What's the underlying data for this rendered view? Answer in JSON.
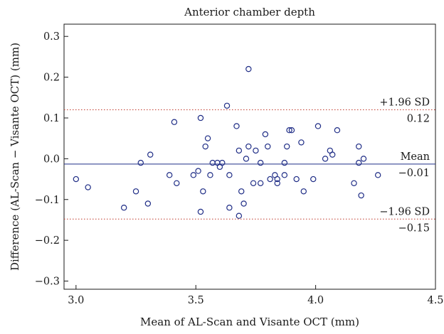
{
  "chart_data": {
    "type": "scatter",
    "title": "Anterior chamber depth",
    "xlabel": "Mean of AL-Scan and Visante OCT (mm)",
    "ylabel": "Difference (AL-Scan − Visante OCT) (mm)",
    "xlim": [
      2.95,
      4.5
    ],
    "ylim": [
      -0.32,
      0.33
    ],
    "xticks": [
      3.0,
      3.5,
      4.0,
      4.5
    ],
    "xtick_labels": [
      "3.0",
      "3.5",
      "4.0",
      "4.5"
    ],
    "yticks": [
      -0.3,
      -0.2,
      -0.1,
      0.0,
      0.1,
      0.2,
      0.3
    ],
    "ytick_labels": [
      "−0.3",
      "−0.2",
      "−0.1",
      "0.0",
      "0.1",
      "0.2",
      "0.3"
    ],
    "grid": false,
    "points": [
      [
        3.0,
        -0.05
      ],
      [
        3.05,
        -0.07
      ],
      [
        3.2,
        -0.12
      ],
      [
        3.25,
        -0.08
      ],
      [
        3.27,
        -0.01
      ],
      [
        3.3,
        -0.11
      ],
      [
        3.31,
        0.01
      ],
      [
        3.39,
        -0.04
      ],
      [
        3.41,
        0.09
      ],
      [
        3.42,
        -0.06
      ],
      [
        3.49,
        -0.04
      ],
      [
        3.51,
        -0.03
      ],
      [
        3.52,
        -0.13
      ],
      [
        3.52,
        0.1
      ],
      [
        3.53,
        -0.08
      ],
      [
        3.54,
        0.03
      ],
      [
        3.55,
        0.05
      ],
      [
        3.56,
        -0.04
      ],
      [
        3.57,
        -0.01
      ],
      [
        3.59,
        -0.01
      ],
      [
        3.6,
        -0.02
      ],
      [
        3.61,
        -0.01
      ],
      [
        3.63,
        0.13
      ],
      [
        3.64,
        -0.12
      ],
      [
        3.64,
        -0.04
      ],
      [
        3.67,
        0.08
      ],
      [
        3.68,
        -0.14
      ],
      [
        3.68,
        0.02
      ],
      [
        3.69,
        -0.08
      ],
      [
        3.7,
        -0.11
      ],
      [
        3.71,
        0.0
      ],
      [
        3.72,
        0.03
      ],
      [
        3.72,
        0.22
      ],
      [
        3.74,
        -0.06
      ],
      [
        3.75,
        0.02
      ],
      [
        3.77,
        -0.06
      ],
      [
        3.77,
        -0.01
      ],
      [
        3.79,
        0.06
      ],
      [
        3.8,
        0.03
      ],
      [
        3.81,
        -0.05
      ],
      [
        3.83,
        -0.04
      ],
      [
        3.84,
        -0.06
      ],
      [
        3.84,
        -0.05
      ],
      [
        3.87,
        -0.04
      ],
      [
        3.87,
        -0.01
      ],
      [
        3.88,
        0.03
      ],
      [
        3.89,
        0.07
      ],
      [
        3.9,
        0.07
      ],
      [
        3.92,
        -0.05
      ],
      [
        3.94,
        0.04
      ],
      [
        3.95,
        -0.08
      ],
      [
        3.99,
        -0.05
      ],
      [
        4.01,
        0.08
      ],
      [
        4.04,
        0.0
      ],
      [
        4.06,
        0.02
      ],
      [
        4.07,
        0.01
      ],
      [
        4.09,
        0.07
      ],
      [
        4.16,
        -0.06
      ],
      [
        4.18,
        -0.01
      ],
      [
        4.18,
        0.03
      ],
      [
        4.19,
        -0.09
      ],
      [
        4.2,
        0.0
      ],
      [
        4.26,
        -0.04
      ]
    ],
    "reference_lines": [
      {
        "role": "upper_loa",
        "value": 0.12,
        "label_top": "+1.96 SD",
        "label_bottom": "0.12",
        "style": "dotted",
        "color": "#c0392b"
      },
      {
        "role": "mean",
        "value": -0.013,
        "label_top": "Mean",
        "label_bottom": "−0.01",
        "style": "solid",
        "color": "#1f2d86"
      },
      {
        "role": "lower_loa",
        "value": -0.148,
        "label_top": "−1.96 SD",
        "label_bottom": "−0.15",
        "style": "dotted",
        "color": "#c0392b"
      }
    ],
    "marker_color": "#1f2d86"
  }
}
